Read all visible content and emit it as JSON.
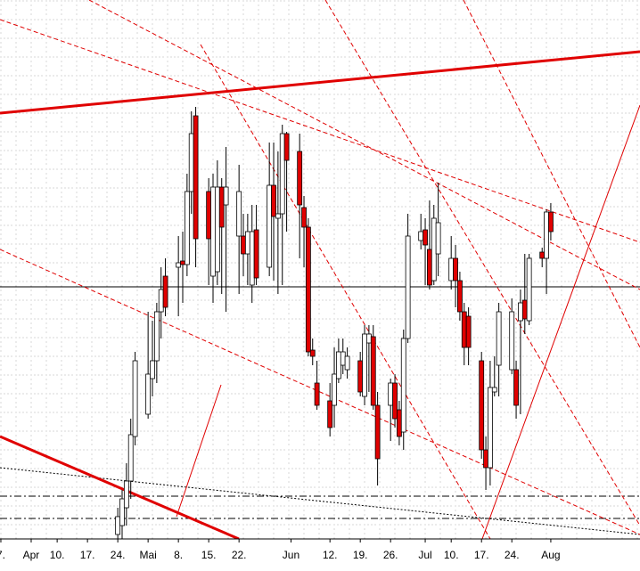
{
  "chart_data": {
    "type": "candlestick",
    "x": [
      24,
      25,
      26,
      27,
      28,
      31,
      32,
      33,
      34,
      35,
      38,
      39,
      40,
      41,
      42,
      45,
      46,
      47,
      48,
      49,
      52,
      53,
      54,
      55,
      56,
      59,
      60,
      61,
      62,
      63,
      66,
      67,
      68,
      69,
      70,
      73,
      74,
      75,
      76,
      77,
      80,
      81,
      82,
      83,
      84,
      87,
      88,
      89,
      90,
      91,
      94,
      95,
      96,
      97,
      98,
      101,
      102,
      103,
      104,
      105,
      108,
      109,
      110,
      111,
      112,
      115,
      116,
      117,
      118,
      119,
      122,
      123,
      124
    ],
    "open": [
      5,
      15,
      35,
      65,
      115,
      140,
      180,
      200,
      255,
      295,
      305,
      312,
      308,
      390,
      475,
      390,
      295,
      300,
      395,
      375,
      340,
      340,
      320,
      285,
      347,
      305,
      397,
      360,
      365,
      455,
      435,
      372,
      350,
      212,
      175,
      155,
      150,
      180,
      195,
      190,
      200,
      160,
      220,
      227,
      150,
      150,
      175,
      145,
      120,
      225,
      335,
      347,
      325,
      290,
      320,
      290,
      315,
      290,
      255,
      250,
      200,
      100,
      80,
      165,
      195,
      190,
      190,
      245,
      268,
      245,
      322,
      315,
      367
    ],
    "high": [
      35,
      55,
      85,
      135,
      210,
      255,
      245,
      265,
      305,
      315,
      340,
      345,
      410,
      480,
      485,
      405,
      410,
      425,
      405,
      440,
      420,
      365,
      365,
      375,
      375,
      445,
      445,
      435,
      465,
      457,
      455,
      385,
      360,
      225,
      200,
      175,
      215,
      225,
      225,
      215,
      210,
      240,
      240,
      240,
      165,
      180,
      185,
      155,
      235,
      365,
      365,
      360,
      380,
      375,
      400,
      340,
      330,
      300,
      265,
      260,
      210,
      115,
      200,
      205,
      265,
      270,
      200,
      280,
      320,
      320,
      327,
      370,
      377
    ],
    "low": [
      0,
      0,
      15,
      45,
      105,
      135,
      160,
      175,
      225,
      250,
      250,
      265,
      295,
      365,
      305,
      285,
      265,
      285,
      275,
      255,
      275,
      295,
      285,
      265,
      285,
      295,
      290,
      275,
      285,
      345,
      315,
      305,
      205,
      195,
      145,
      115,
      125,
      175,
      185,
      180,
      160,
      150,
      165,
      145,
      60,
      110,
      125,
      105,
      100,
      220,
      325,
      285,
      280,
      285,
      295,
      280,
      260,
      245,
      195,
      195,
      90,
      55,
      60,
      160,
      160,
      185,
      135,
      140,
      230,
      240,
      305,
      275,
      335
    ],
    "close": [
      25,
      45,
      65,
      117,
      200,
      185,
      200,
      255,
      280,
      260,
      310,
      308,
      390,
      455,
      337,
      337,
      395,
      395,
      350,
      395,
      390,
      320,
      345,
      345,
      293,
      397,
      362,
      365,
      455,
      425,
      375,
      350,
      210,
      205,
      150,
      125,
      185,
      210,
      210,
      205,
      165,
      230,
      230,
      150,
      90,
      175,
      135,
      115,
      225,
      340,
      345,
      330,
      285,
      360,
      355,
      315,
      290,
      255,
      215,
      215,
      100,
      80,
      170,
      170,
      255,
      255,
      150,
      265,
      247,
      315,
      315,
      367,
      345
    ],
    "up_color": "#ffffff",
    "down_color": "#e00000",
    "xlim": [
      -3.2,
      144.6
    ],
    "ylim": [
      0,
      605
    ],
    "xticks": [
      {
        "value": -3,
        "label": "7."
      },
      {
        "value": 4,
        "label": "Apr"
      },
      {
        "value": 10,
        "label": "10."
      },
      {
        "value": 17,
        "label": "17."
      },
      {
        "value": 24,
        "label": "24."
      },
      {
        "value": 31,
        "label": "Mai"
      },
      {
        "value": 38,
        "label": "8."
      },
      {
        "value": 45,
        "label": "15."
      },
      {
        "value": 52,
        "label": "22."
      },
      {
        "value": 64,
        "label": "Jun"
      },
      {
        "value": 73,
        "label": "12."
      },
      {
        "value": 80,
        "label": "19."
      },
      {
        "value": 87,
        "label": "26."
      },
      {
        "value": 95,
        "label": "Jul"
      },
      {
        "value": 101,
        "label": "10."
      },
      {
        "value": 108,
        "label": "17."
      },
      {
        "value": 115,
        "label": "24."
      },
      {
        "value": 124,
        "label": "Aug"
      }
    ],
    "grid": true
  }
}
